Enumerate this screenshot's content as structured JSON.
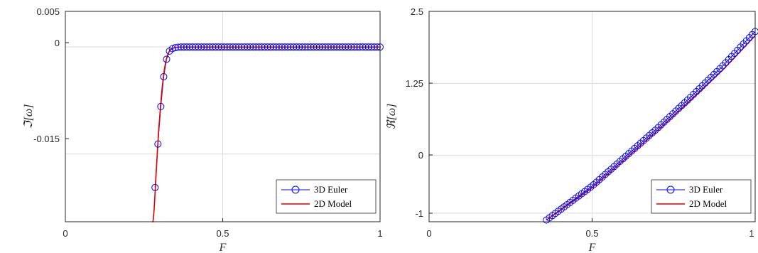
{
  "colors": {
    "euler": "#0000ff",
    "model": "#e00000",
    "grid": "#dcdcdc",
    "axis": "#262626"
  },
  "chart_data": [
    {
      "type": "line",
      "xlabel": "F",
      "ylabel": "ℑ[ω]",
      "xlim": [
        0,
        1
      ],
      "ylim": [
        -0.0245,
        0.005
      ],
      "xticks": [
        0,
        0.5,
        1
      ],
      "xticklabels": [
        "0",
        "0.5",
        "1"
      ],
      "yticks": [
        0.005,
        0,
        -0.015
      ],
      "yticklabels": [
        "0.005",
        "0",
        "-0.015"
      ],
      "grid": true,
      "legend_position": "bottom-right",
      "series": [
        {
          "name": "3D Euler",
          "style": "line-with-circle-markers",
          "x_range": [
            0.285,
            1
          ],
          "n_points": 79,
          "points": [
            [
              0.285,
              -0.0197
            ],
            [
              0.294,
              -0.0137
            ],
            [
              0.303,
              -0.0085
            ],
            [
              0.312,
              -0.0043
            ],
            [
              0.321,
              -0.0018
            ],
            [
              0.33,
              -0.0006
            ],
            [
              0.339,
              -0.00025
            ],
            [
              0.348,
              -0.0001
            ],
            [
              0.357,
              -4e-05
            ],
            [
              0.366,
              -1e-05
            ]
          ],
          "steady_value": 0
        },
        {
          "name": "2D Model",
          "style": "solid-line",
          "points": [
            [
              0.275,
              -0.028
            ],
            [
              0.28,
              -0.0245
            ],
            [
              0.285,
              -0.0205
            ],
            [
              0.29,
              -0.0165
            ],
            [
              0.296,
              -0.012
            ],
            [
              0.302,
              -0.0085
            ],
            [
              0.308,
              -0.0055
            ],
            [
              0.314,
              -0.0033
            ],
            [
              0.32,
              -0.0018
            ],
            [
              0.327,
              -0.0008
            ],
            [
              0.335,
              -0.0003
            ],
            [
              0.345,
              -0.0001
            ],
            [
              0.36,
              0
            ],
            [
              1.0,
              0
            ]
          ]
        }
      ]
    },
    {
      "type": "line",
      "xlabel": "F",
      "ylabel": "ℜ[ω]",
      "xlim": [
        0,
        1
      ],
      "ylim": [
        -1.15,
        2.5
      ],
      "xticks": [
        0,
        0.5,
        1
      ],
      "xticklabels": [
        "0",
        "0.5",
        "1"
      ],
      "yticks": [
        2.5,
        1.25,
        0,
        -1
      ],
      "yticklabels": [
        "2.5",
        "1.25",
        "0",
        "-1"
      ],
      "grid": true,
      "legend_position": "bottom-right",
      "series": [
        {
          "name": "3D Euler",
          "style": "line-with-circle-markers",
          "x_range": [
            0.36,
            1
          ],
          "n_points": 72,
          "points": [
            [
              0.36,
              -1.12
            ],
            [
              0.5,
              -0.53
            ],
            [
              0.6,
              -0.03
            ],
            [
              0.7,
              0.47
            ],
            [
              0.8,
              1.0
            ],
            [
              0.9,
              1.55
            ],
            [
              1.0,
              2.15
            ]
          ]
        },
        {
          "name": "2D Model",
          "style": "solid-line",
          "points": [
            [
              0.36,
              -1.12
            ],
            [
              0.5,
              -0.56
            ],
            [
              0.6,
              -0.07
            ],
            [
              0.7,
              0.43
            ],
            [
              0.8,
              0.95
            ],
            [
              0.9,
              1.48
            ],
            [
              1.0,
              2.08
            ]
          ]
        }
      ]
    }
  ]
}
